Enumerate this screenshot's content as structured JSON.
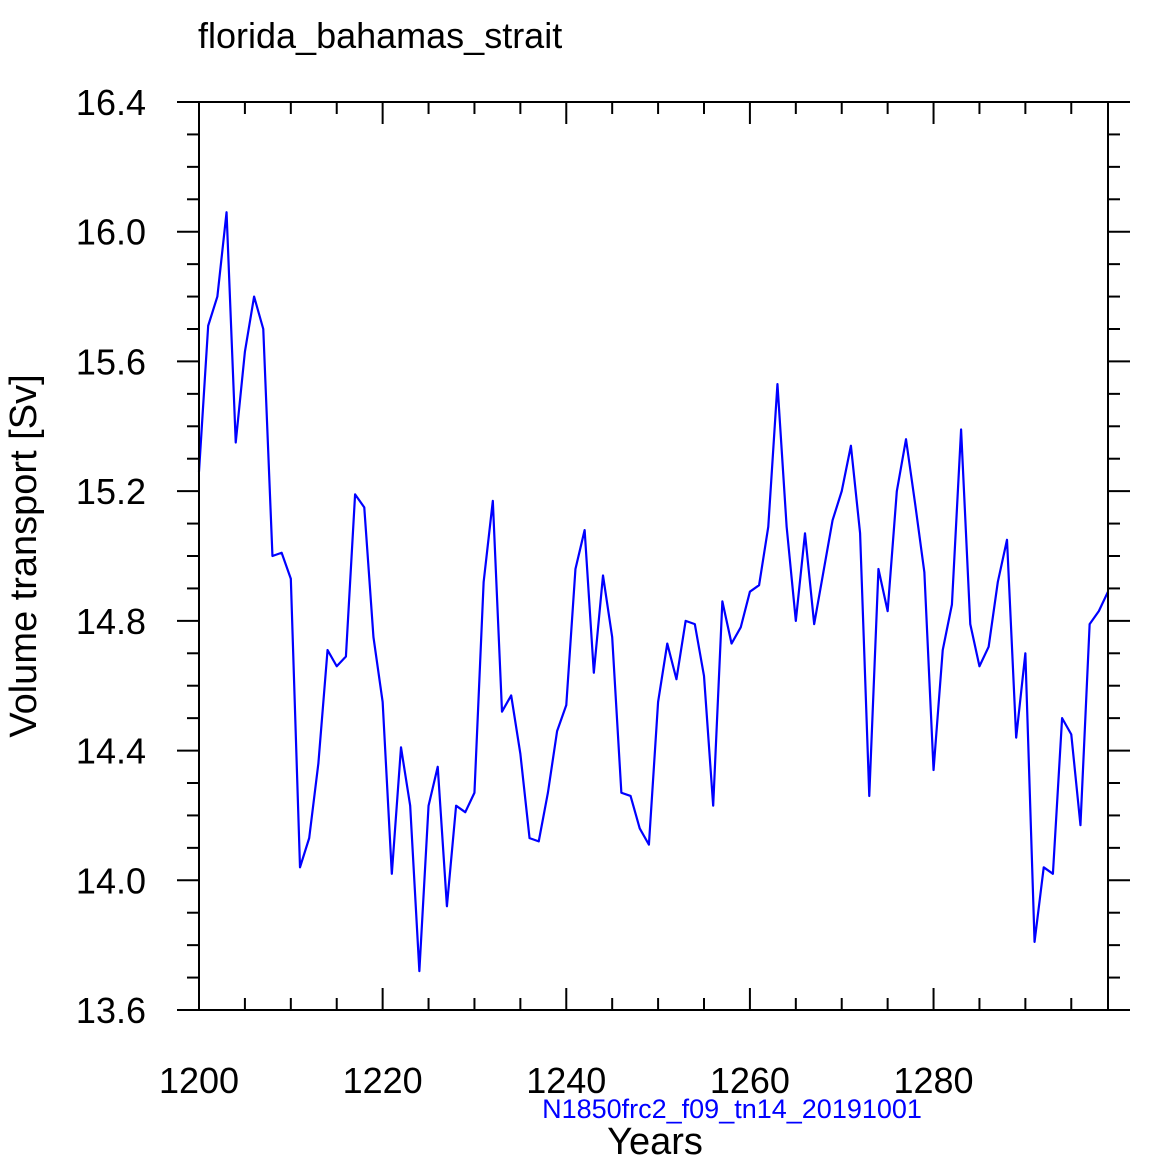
{
  "chart_data": {
    "type": "line",
    "title": "florida_bahamas_strait",
    "xlabel": "Years",
    "ylabel": "Volume transport [Sv]",
    "caption": "N1850frc2_f09_tn14_20191001",
    "xlim": [
      1200,
      1299
    ],
    "ylim": [
      13.6,
      16.4
    ],
    "x_ticks": [
      1200,
      1220,
      1240,
      1260,
      1280
    ],
    "x_tick_labels": [
      "1200",
      "1220",
      "1240",
      "1260",
      "1280"
    ],
    "y_ticks": [
      13.6,
      14.0,
      14.4,
      14.8,
      15.2,
      15.6,
      16.0,
      16.4
    ],
    "y_tick_labels": [
      "13.6",
      "14.0",
      "14.4",
      "14.8",
      "15.2",
      "15.6",
      "16.0",
      "16.4"
    ],
    "series": [
      {
        "name": "florida_bahamas_strait",
        "color": "#0000ff",
        "x_start": 1200,
        "x_step": 1,
        "values": [
          15.26,
          15.71,
          15.8,
          16.06,
          15.35,
          15.63,
          15.8,
          15.7,
          15.0,
          15.01,
          14.93,
          14.04,
          14.13,
          14.36,
          14.71,
          14.66,
          14.69,
          15.19,
          15.15,
          14.75,
          14.55,
          14.02,
          14.41,
          14.23,
          13.72,
          14.23,
          14.35,
          13.92,
          14.23,
          14.21,
          14.27,
          14.92,
          15.17,
          14.52,
          14.57,
          14.39,
          14.13,
          14.12,
          14.27,
          14.46,
          14.54,
          14.96,
          15.08,
          14.64,
          14.94,
          14.75,
          14.27,
          14.26,
          14.16,
          14.11,
          14.55,
          14.73,
          14.62,
          14.8,
          14.79,
          14.63,
          14.23,
          14.86,
          14.73,
          14.78,
          14.89,
          14.91,
          15.09,
          15.53,
          15.09,
          14.8,
          15.07,
          14.79,
          14.95,
          15.11,
          15.2,
          15.34,
          15.07,
          14.26,
          14.96,
          14.83,
          15.2,
          15.36,
          15.16,
          14.95,
          14.34,
          14.71,
          14.85,
          15.39,
          14.79,
          14.66,
          14.72,
          14.92,
          15.05,
          14.44,
          14.7,
          13.81,
          14.04,
          14.02,
          14.5,
          14.45,
          14.17,
          14.79,
          14.83,
          14.89
        ]
      }
    ]
  }
}
